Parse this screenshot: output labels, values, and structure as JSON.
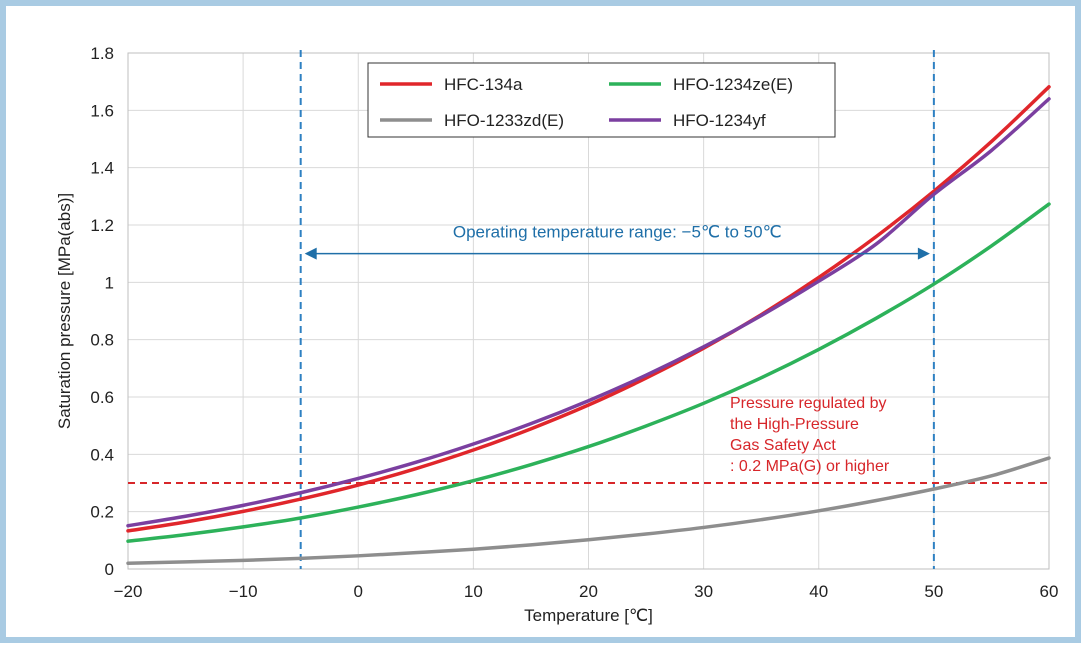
{
  "chart_data": {
    "type": "line",
    "title": "",
    "xlabel": "Temperature [℃]",
    "ylabel": "Saturation pressure [MPa(abs)]",
    "xlim": [
      -20,
      60
    ],
    "ylim": [
      0,
      1.8
    ],
    "x_ticks": [
      -20,
      -10,
      0,
      10,
      20,
      30,
      40,
      50,
      60
    ],
    "y_ticks": [
      0,
      0.2,
      0.4,
      0.6,
      0.8,
      1,
      1.2,
      1.4,
      1.6,
      1.8
    ],
    "x_tick_labels": [
      "−20",
      "−10",
      "0",
      "10",
      "20",
      "30",
      "40",
      "50",
      "60"
    ],
    "y_tick_labels": [
      "0",
      "0.2",
      "0.4",
      "0.6",
      "0.8",
      "1",
      "1.2",
      "1.4",
      "1.6",
      "1.8"
    ],
    "grid": true,
    "legend_position": "top",
    "x": [
      -20,
      -15,
      -10,
      -5,
      0,
      5,
      10,
      15,
      20,
      25,
      30,
      35,
      40,
      45,
      50,
      55,
      60
    ],
    "series": [
      {
        "name": "HFC-134a",
        "color": "#e0262b",
        "values": [
          0.133,
          0.164,
          0.201,
          0.244,
          0.293,
          0.35,
          0.415,
          0.489,
          0.572,
          0.666,
          0.77,
          0.887,
          1.017,
          1.16,
          1.318,
          1.491,
          1.682
        ]
      },
      {
        "name": "HFO-1234ze(E)",
        "color": "#2db25a",
        "values": [
          0.097,
          0.12,
          0.147,
          0.178,
          0.216,
          0.259,
          0.308,
          0.364,
          0.427,
          0.499,
          0.578,
          0.667,
          0.766,
          0.875,
          0.994,
          1.127,
          1.273
        ]
      },
      {
        "name": "HFO-1233zd(E)",
        "color": "#8e8e8e",
        "values": [
          0.02,
          0.025,
          0.03,
          0.037,
          0.046,
          0.057,
          0.069,
          0.084,
          0.102,
          0.122,
          0.145,
          0.172,
          0.203,
          0.239,
          0.279,
          0.325,
          0.387
        ]
      },
      {
        "name": "HFO-1234yf",
        "color": "#7b3fa0",
        "values": [
          0.151,
          0.184,
          0.222,
          0.266,
          0.316,
          0.372,
          0.436,
          0.507,
          0.587,
          0.676,
          0.775,
          0.884,
          1.004,
          1.134,
          1.307,
          1.46,
          1.64
        ]
      }
    ],
    "reference_lines": [
      {
        "orientation": "vertical",
        "x": -5,
        "color": "#2e80c2",
        "style": "dashed"
      },
      {
        "orientation": "vertical",
        "x": 50,
        "color": "#2e80c2",
        "style": "dashed"
      },
      {
        "orientation": "horizontal",
        "y": 0.3,
        "color": "#d7262a",
        "style": "dashed"
      }
    ],
    "annotations": {
      "range_text": "Operating temperature range: −5℃ to 50℃",
      "range_arrow": {
        "x_from": -5,
        "x_to": 50,
        "y": 1.1
      },
      "range_color": "#1f6fa8",
      "pressure_lines": [
        "Pressure regulated by",
        "the High-Pressure",
        "Gas Safety Act",
        ": 0.2 MPa(G) or higher"
      ],
      "pressure_color": "#d7262a"
    }
  }
}
